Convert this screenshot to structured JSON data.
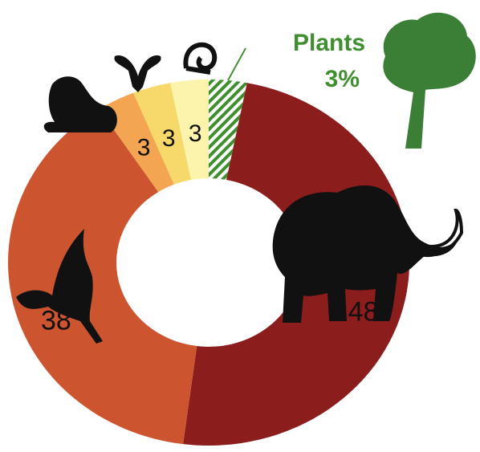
{
  "chart_data": {
    "type": "donut",
    "categories": [
      "Plants",
      null,
      null,
      null,
      null,
      null
    ],
    "values": [
      3,
      48,
      38,
      3,
      3,
      3
    ],
    "value_labels": [
      "3%",
      "48",
      "38",
      "3",
      "3",
      "3"
    ],
    "colors": [
      "#3f8f2f",
      "#8c1d1d",
      "#cc5530",
      "#f3a552",
      "#f6d96a",
      "#fcf3ac"
    ],
    "hatched": [
      true,
      false,
      false,
      false,
      false,
      false
    ]
  }
}
